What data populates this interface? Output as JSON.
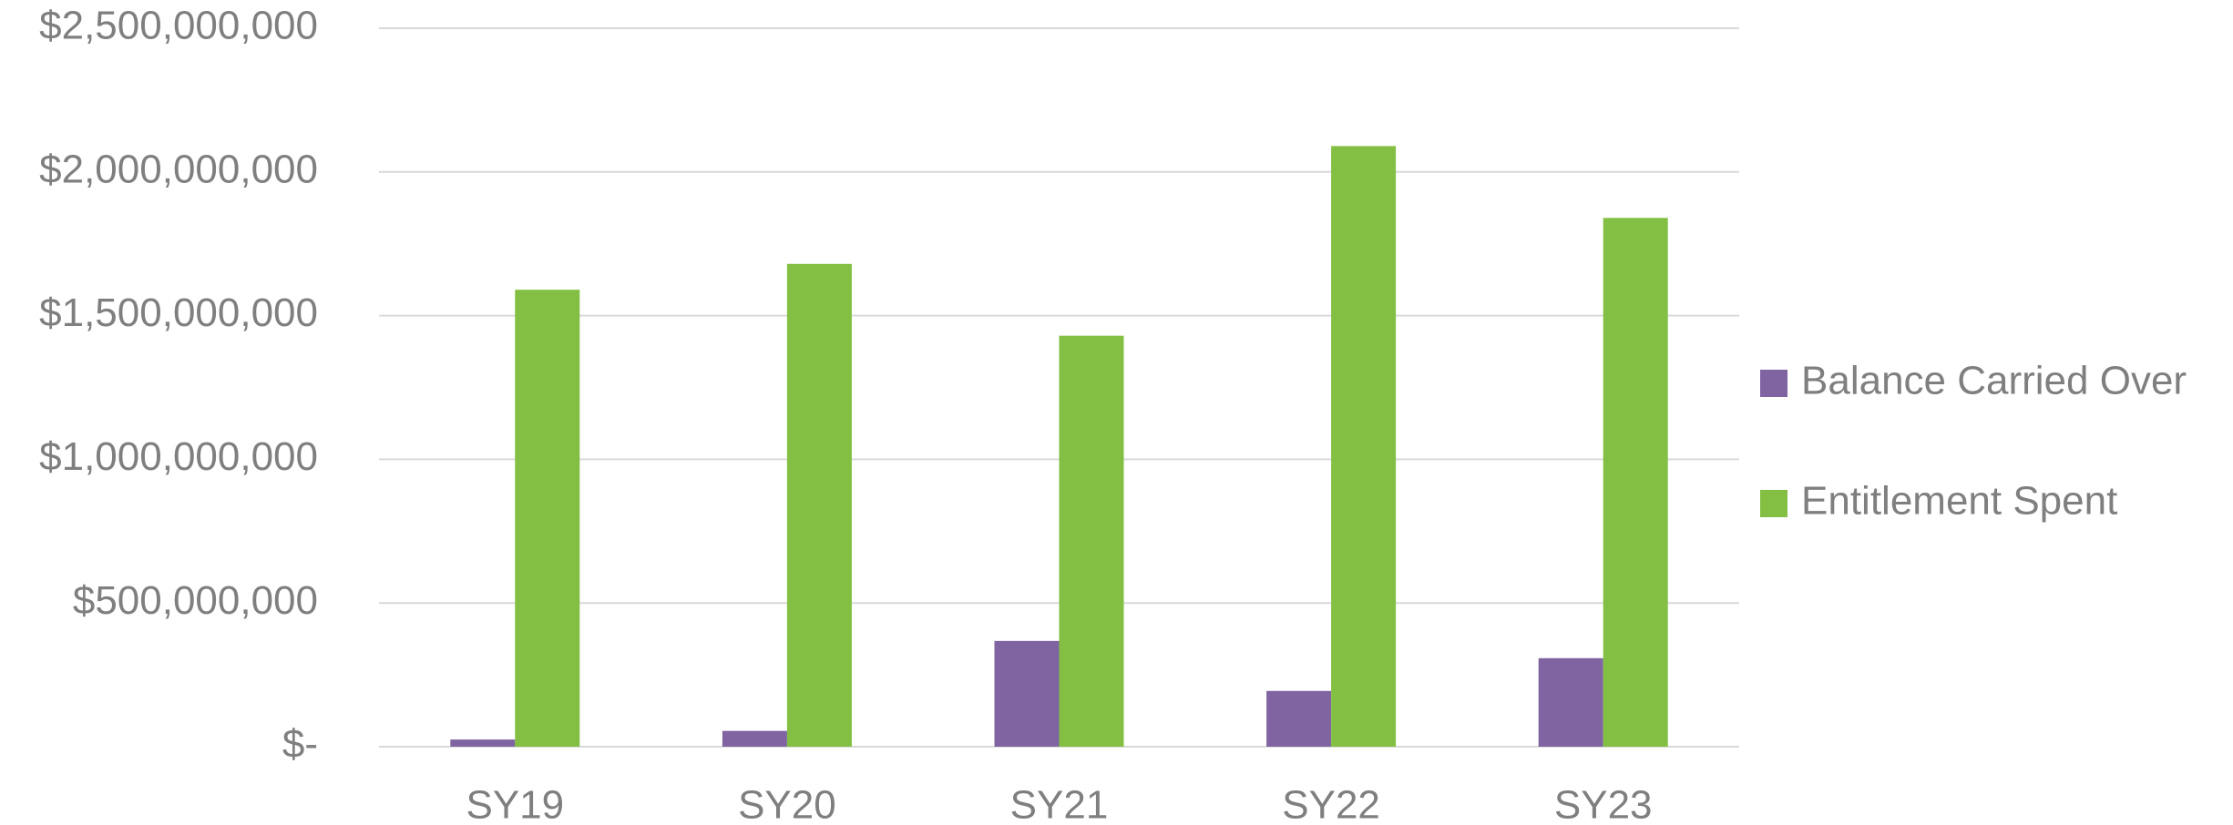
{
  "chart_data": {
    "type": "bar",
    "categories": [
      "SY19",
      "SY20",
      "SY21",
      "SY22",
      "SY23"
    ],
    "series": [
      {
        "name": "Balance Carried Over",
        "color": "#8064a2",
        "values": [
          25000000,
          55000000,
          368000000,
          194000000,
          308000000
        ]
      },
      {
        "name": "Entitlement Spent",
        "color": "#82bf42",
        "values": [
          1590000000,
          1680000000,
          1430000000,
          2090000000,
          1840000000
        ]
      }
    ],
    "ylim": [
      0,
      2500000000
    ],
    "yticks": [
      {
        "value": 0,
        "label": "$-"
      },
      {
        "value": 500000000,
        "label": "$500,000,000"
      },
      {
        "value": 1000000000,
        "label": "$1,000,000,000"
      },
      {
        "value": 1500000000,
        "label": "$1,500,000,000"
      },
      {
        "value": 2000000000,
        "label": "$2,000,000,000"
      },
      {
        "value": 2500000000,
        "label": "$2,500,000,000"
      }
    ],
    "grid": true,
    "legend": "right"
  }
}
